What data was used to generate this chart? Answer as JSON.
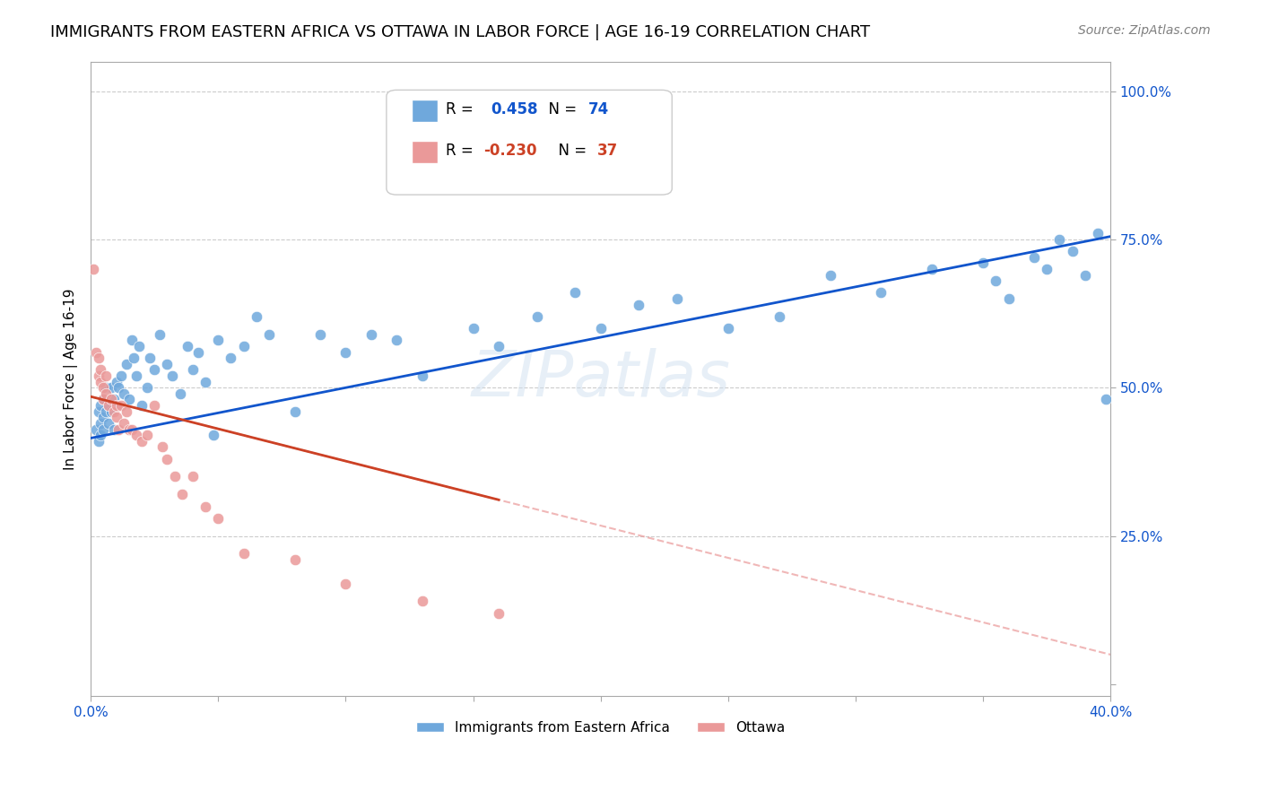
{
  "title": "IMMIGRANTS FROM EASTERN AFRICA VS OTTAWA IN LABOR FORCE | AGE 16-19 CORRELATION CHART",
  "source": "Source: ZipAtlas.com",
  "xlabel": "",
  "ylabel": "In Labor Force | Age 16-19",
  "xlim": [
    0.0,
    0.4
  ],
  "ylim": [
    0.0,
    1.05
  ],
  "xticks": [
    0.0,
    0.05,
    0.1,
    0.15,
    0.2,
    0.25,
    0.3,
    0.35,
    0.4
  ],
  "xticklabels": [
    "0.0%",
    "",
    "",
    "",
    "",
    "",
    "",
    "",
    "40.0%"
  ],
  "yticks": [
    0.0,
    0.25,
    0.5,
    0.75,
    1.0
  ],
  "yticklabels": [
    "",
    "25.0%",
    "50.0%",
    "75.0%",
    "100.0%"
  ],
  "blue_R": 0.458,
  "blue_N": 74,
  "pink_R": -0.23,
  "pink_N": 37,
  "blue_color": "#6fa8dc",
  "pink_color": "#ea9999",
  "blue_line_color": "#1155cc",
  "pink_line_color": "#cc4125",
  "watermark": "ZIPatlas",
  "background_color": "#ffffff",
  "grid_color": "#cccccc",
  "axis_color": "#aaaaaa",
  "title_fontsize": 13,
  "label_fontsize": 11,
  "tick_fontsize": 11,
  "blue_x": [
    0.002,
    0.003,
    0.003,
    0.004,
    0.004,
    0.004,
    0.005,
    0.005,
    0.005,
    0.006,
    0.006,
    0.007,
    0.007,
    0.008,
    0.008,
    0.009,
    0.009,
    0.01,
    0.01,
    0.011,
    0.012,
    0.013,
    0.014,
    0.015,
    0.016,
    0.017,
    0.018,
    0.019,
    0.02,
    0.022,
    0.023,
    0.025,
    0.027,
    0.03,
    0.032,
    0.035,
    0.038,
    0.04,
    0.042,
    0.045,
    0.048,
    0.05,
    0.055,
    0.06,
    0.065,
    0.07,
    0.08,
    0.09,
    0.1,
    0.11,
    0.12,
    0.13,
    0.15,
    0.16,
    0.175,
    0.19,
    0.2,
    0.215,
    0.23,
    0.25,
    0.27,
    0.29,
    0.31,
    0.33,
    0.35,
    0.355,
    0.36,
    0.37,
    0.375,
    0.38,
    0.385,
    0.39,
    0.395,
    0.398
  ],
  "blue_y": [
    0.43,
    0.46,
    0.41,
    0.47,
    0.44,
    0.42,
    0.48,
    0.45,
    0.43,
    0.46,
    0.5,
    0.44,
    0.47,
    0.5,
    0.46,
    0.48,
    0.43,
    0.51,
    0.47,
    0.5,
    0.52,
    0.49,
    0.54,
    0.48,
    0.58,
    0.55,
    0.52,
    0.57,
    0.47,
    0.5,
    0.55,
    0.53,
    0.59,
    0.54,
    0.52,
    0.49,
    0.57,
    0.53,
    0.56,
    0.51,
    0.42,
    0.58,
    0.55,
    0.57,
    0.62,
    0.59,
    0.46,
    0.59,
    0.56,
    0.59,
    0.58,
    0.52,
    0.6,
    0.57,
    0.62,
    0.66,
    0.6,
    0.64,
    0.65,
    0.6,
    0.62,
    0.69,
    0.66,
    0.7,
    0.71,
    0.68,
    0.65,
    0.72,
    0.7,
    0.75,
    0.73,
    0.69,
    0.76,
    0.48
  ],
  "pink_x": [
    0.001,
    0.002,
    0.003,
    0.003,
    0.004,
    0.004,
    0.005,
    0.005,
    0.006,
    0.006,
    0.007,
    0.008,
    0.009,
    0.01,
    0.01,
    0.011,
    0.012,
    0.013,
    0.014,
    0.015,
    0.016,
    0.018,
    0.02,
    0.022,
    0.025,
    0.028,
    0.03,
    0.033,
    0.036,
    0.04,
    0.045,
    0.05,
    0.06,
    0.08,
    0.1,
    0.13,
    0.16
  ],
  "pink_y": [
    0.7,
    0.56,
    0.52,
    0.55,
    0.51,
    0.53,
    0.5,
    0.48,
    0.52,
    0.49,
    0.47,
    0.48,
    0.46,
    0.45,
    0.47,
    0.43,
    0.47,
    0.44,
    0.46,
    0.43,
    0.43,
    0.42,
    0.41,
    0.42,
    0.47,
    0.4,
    0.38,
    0.35,
    0.32,
    0.35,
    0.3,
    0.28,
    0.22,
    0.21,
    0.17,
    0.14,
    0.12
  ]
}
